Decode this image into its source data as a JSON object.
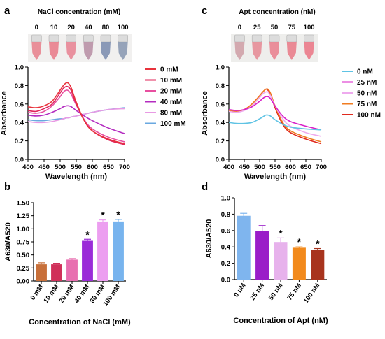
{
  "panels": {
    "a": {
      "letter": "a"
    },
    "b": {
      "letter": "b"
    },
    "c": {
      "letter": "c"
    },
    "d": {
      "letter": "d"
    }
  },
  "photos": {
    "a": {
      "header": "NaCl concentration (mM)",
      "labels": [
        "0",
        "10",
        "20",
        "40",
        "80",
        "100"
      ],
      "tube_colors": [
        "#e8848f",
        "#e97e8c",
        "#e88696",
        "#b991a6",
        "#7e8fb0",
        "#8c9ab2"
      ]
    },
    "c": {
      "header": "Apt concentration (nM)",
      "labels": [
        "0",
        "25",
        "50",
        "75",
        "100"
      ],
      "tube_colors": [
        "#cfa1a8",
        "#e58d98",
        "#e98391",
        "#e97e8c",
        "#ea7a89"
      ]
    }
  },
  "chart_data": [
    {
      "id": "a",
      "type": "line",
      "xlabel": "Wavelength (nm)",
      "ylabel": "Absorbance",
      "xlim": [
        400,
        700
      ],
      "ylim": [
        0,
        1.0
      ],
      "xticks": [
        "400",
        "450",
        "500",
        "550",
        "600",
        "650",
        "700"
      ],
      "yticks": [
        "0.0",
        "0.2",
        "0.4",
        "0.6",
        "0.8",
        "1.0"
      ],
      "x": [
        400,
        425,
        450,
        475,
        500,
        510,
        520,
        527,
        535,
        550,
        575,
        600,
        650,
        700
      ],
      "series": [
        {
          "name": "0 mM",
          "color": "#e8333c",
          "values": [
            0.57,
            0.56,
            0.58,
            0.63,
            0.75,
            0.8,
            0.83,
            0.82,
            0.77,
            0.62,
            0.42,
            0.31,
            0.22,
            0.17
          ]
        },
        {
          "name": "10 mM",
          "color": "#e0245a",
          "values": [
            0.53,
            0.52,
            0.55,
            0.6,
            0.72,
            0.77,
            0.79,
            0.78,
            0.74,
            0.6,
            0.42,
            0.31,
            0.21,
            0.16
          ]
        },
        {
          "name": "20 mM",
          "color": "#e84fa0",
          "values": [
            0.51,
            0.5,
            0.52,
            0.58,
            0.68,
            0.73,
            0.75,
            0.74,
            0.7,
            0.59,
            0.43,
            0.33,
            0.24,
            0.19
          ]
        },
        {
          "name": "40 mM",
          "color": "#b42cc0",
          "values": [
            0.48,
            0.47,
            0.48,
            0.51,
            0.55,
            0.57,
            0.58,
            0.58,
            0.57,
            0.53,
            0.47,
            0.42,
            0.34,
            0.28
          ]
        },
        {
          "name": "80 mM",
          "color": "#e89ae4",
          "values": [
            0.41,
            0.4,
            0.4,
            0.41,
            0.43,
            0.44,
            0.45,
            0.45,
            0.46,
            0.47,
            0.49,
            0.51,
            0.54,
            0.55
          ]
        },
        {
          "name": "100 mM",
          "color": "#6aa8e0",
          "values": [
            0.43,
            0.42,
            0.42,
            0.43,
            0.44,
            0.44,
            0.45,
            0.45,
            0.46,
            0.47,
            0.49,
            0.51,
            0.54,
            0.56
          ]
        }
      ]
    },
    {
      "id": "b",
      "type": "bar",
      "xlabel": "Concentration of NaCl (mM)",
      "ylabel": "A630/A520",
      "ylim": [
        0,
        1.5
      ],
      "yticks": [
        "0.00",
        "0.25",
        "0.50",
        "0.75",
        "1.00",
        "1.25",
        "1.50"
      ],
      "categories": [
        "0 mM",
        "10 mM",
        "20 mM",
        "40 mM",
        "80 mM",
        "100 mM"
      ],
      "values": [
        0.32,
        0.32,
        0.41,
        0.77,
        1.14,
        1.14
      ],
      "errors": [
        0.03,
        0.02,
        0.02,
        0.03,
        0.03,
        0.04
      ],
      "significant": [
        false,
        false,
        false,
        true,
        true,
        true
      ],
      "marker": "*",
      "colors": [
        "#c8703a",
        "#d0305a",
        "#e86fb0",
        "#9b2bd8",
        "#ec9ef0",
        "#78b4ee"
      ]
    },
    {
      "id": "c",
      "type": "line",
      "xlabel": "Wavelength (nm)",
      "ylabel": "Absorbance",
      "xlim": [
        400,
        700
      ],
      "ylim": [
        0,
        1.0
      ],
      "xticks": [
        "400",
        "450",
        "500",
        "550",
        "600",
        "650",
        "700"
      ],
      "yticks": [
        "0.0",
        "0.2",
        "0.4",
        "0.6",
        "0.8",
        "1.0"
      ],
      "x": [
        400,
        425,
        450,
        475,
        500,
        510,
        520,
        527,
        535,
        550,
        575,
        600,
        650,
        700
      ],
      "series": [
        {
          "name": "0 nM",
          "color": "#5fc3e4",
          "values": [
            0.4,
            0.39,
            0.39,
            0.4,
            0.44,
            0.46,
            0.48,
            0.48,
            0.47,
            0.43,
            0.38,
            0.35,
            0.33,
            0.32
          ]
        },
        {
          "name": "25 nM",
          "color": "#d81fc8",
          "values": [
            0.54,
            0.53,
            0.54,
            0.57,
            0.63,
            0.66,
            0.68,
            0.68,
            0.66,
            0.58,
            0.47,
            0.41,
            0.36,
            0.32
          ]
        },
        {
          "name": "50 nM",
          "color": "#eeaaee",
          "values": [
            0.52,
            0.51,
            0.53,
            0.58,
            0.67,
            0.71,
            0.73,
            0.73,
            0.69,
            0.58,
            0.44,
            0.36,
            0.29,
            0.25
          ]
        },
        {
          "name": "75 nM",
          "color": "#f07c22",
          "values": [
            0.53,
            0.52,
            0.54,
            0.6,
            0.69,
            0.73,
            0.76,
            0.76,
            0.72,
            0.58,
            0.4,
            0.31,
            0.24,
            0.19
          ]
        },
        {
          "name": "100 nM",
          "color": "#e02a1e",
          "values": [
            0.53,
            0.52,
            0.54,
            0.6,
            0.69,
            0.73,
            0.76,
            0.75,
            0.71,
            0.56,
            0.38,
            0.29,
            0.22,
            0.17
          ]
        }
      ]
    },
    {
      "id": "d",
      "type": "bar",
      "xlabel": "Concentration of Apt (nM)",
      "ylabel": "A630/A520",
      "ylim": [
        0,
        1.0
      ],
      "yticks": [
        "0.0",
        "0.2",
        "0.4",
        "0.6",
        "0.8",
        "1.0"
      ],
      "categories": [
        "0 nM",
        "25 nM",
        "50 nM",
        "75 nM",
        "100 nM"
      ],
      "values": [
        0.78,
        0.59,
        0.46,
        0.39,
        0.36
      ],
      "errors": [
        0.03,
        0.07,
        0.05,
        0.01,
        0.02
      ],
      "significant": [
        false,
        false,
        true,
        true,
        true
      ],
      "marker": "*",
      "colors": [
        "#7fb5ee",
        "#9a1ec8",
        "#e7b2ec",
        "#f28a1c",
        "#a8341e"
      ]
    }
  ]
}
